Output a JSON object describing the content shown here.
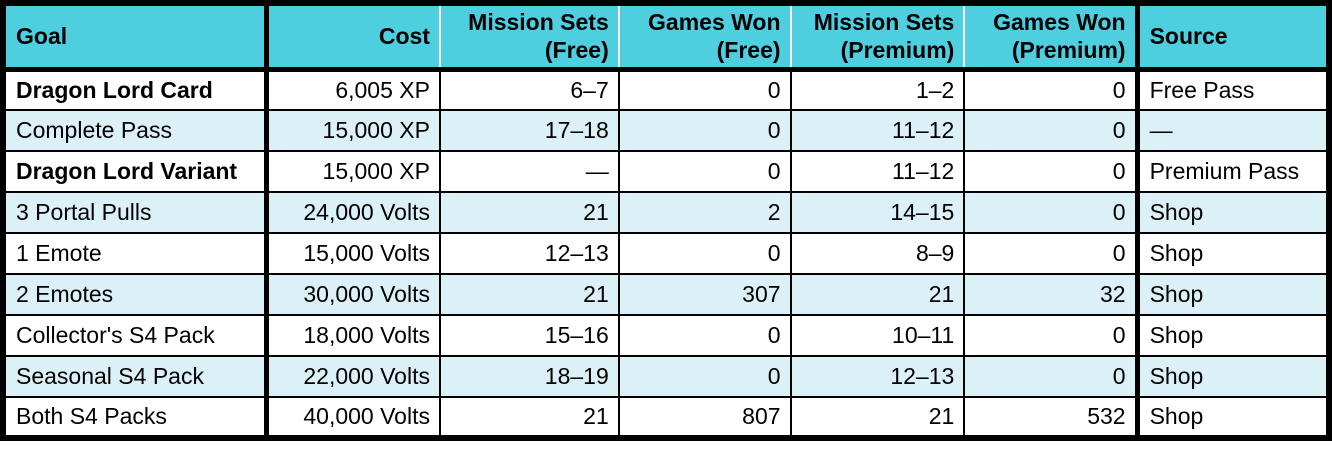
{
  "colors": {
    "header_bg": "#4DCFE0",
    "alt_row_bg": "#DCF1F7",
    "border": "#000000",
    "text": "#000000"
  },
  "table": {
    "columns": [
      {
        "label": "Goal",
        "align": "left"
      },
      {
        "label": "Cost",
        "align": "right"
      },
      {
        "label": "Mission Sets (Free)",
        "align": "right"
      },
      {
        "label": "Games Won (Free)",
        "align": "right"
      },
      {
        "label": "Mission Sets (Premium)",
        "align": "right"
      },
      {
        "label": "Games Won (Premium)",
        "align": "right"
      },
      {
        "label": "Source",
        "align": "left"
      }
    ],
    "rows": [
      {
        "goal": "Dragon Lord Card",
        "emphasis": true,
        "cost": "6,005 XP",
        "mission_sets_free": "6–7",
        "games_won_free": "0",
        "mission_sets_premium": "1–2",
        "games_won_premium": "0",
        "source": "Free Pass"
      },
      {
        "goal": "Complete Pass",
        "emphasis": false,
        "cost": "15,000 XP",
        "mission_sets_free": "17–18",
        "games_won_free": "0",
        "mission_sets_premium": "11–12",
        "games_won_premium": "0",
        "source": "—"
      },
      {
        "goal": "Dragon Lord Variant",
        "emphasis": true,
        "cost": "15,000 XP",
        "mission_sets_free": "—",
        "games_won_free": "0",
        "mission_sets_premium": "11–12",
        "games_won_premium": "0",
        "source": "Premium Pass"
      },
      {
        "goal": "3 Portal Pulls",
        "emphasis": false,
        "cost": "24,000 Volts",
        "mission_sets_free": "21",
        "games_won_free": "2",
        "mission_sets_premium": "14–15",
        "games_won_premium": "0",
        "source": "Shop"
      },
      {
        "goal": "1 Emote",
        "emphasis": false,
        "cost": "15,000 Volts",
        "mission_sets_free": "12–13",
        "games_won_free": "0",
        "mission_sets_premium": "8–9",
        "games_won_premium": "0",
        "source": "Shop"
      },
      {
        "goal": "2 Emotes",
        "emphasis": false,
        "cost": "30,000 Volts",
        "mission_sets_free": "21",
        "games_won_free": "307",
        "mission_sets_premium": "21",
        "games_won_premium": "32",
        "source": "Shop"
      },
      {
        "goal": "Collector's S4 Pack",
        "emphasis": false,
        "cost": "18,000 Volts",
        "mission_sets_free": "15–16",
        "games_won_free": "0",
        "mission_sets_premium": "10–11",
        "games_won_premium": "0",
        "source": "Shop"
      },
      {
        "goal": "Seasonal S4 Pack",
        "emphasis": false,
        "cost": "22,000 Volts",
        "mission_sets_free": "18–19",
        "games_won_free": "0",
        "mission_sets_premium": "12–13",
        "games_won_premium": "0",
        "source": "Shop"
      },
      {
        "goal": "Both S4 Packs",
        "emphasis": false,
        "cost": "40,000 Volts",
        "mission_sets_free": "21",
        "games_won_free": "807",
        "mission_sets_premium": "21",
        "games_won_premium": "532",
        "source": "Shop"
      }
    ]
  }
}
